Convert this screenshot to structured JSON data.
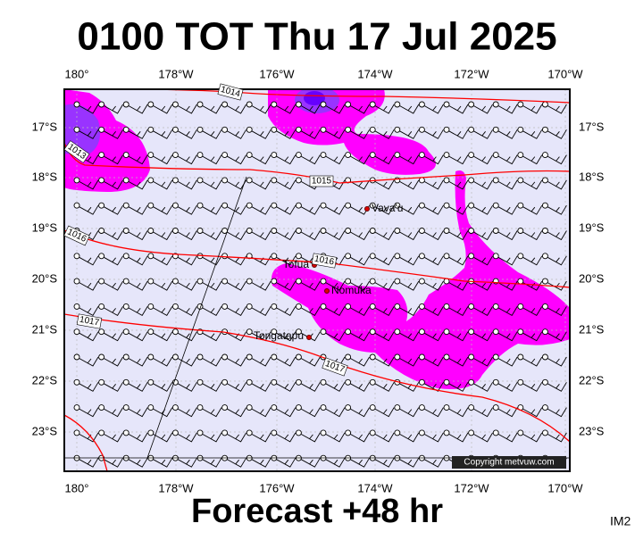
{
  "title": "0100 TOT Thu 17 Jul 2025",
  "footer": "Forecast +48 hr",
  "corner_label": "IM2",
  "map": {
    "lon_labels": [
      "180°",
      "178°W",
      "176°W",
      "174°W",
      "172°W",
      "170°W"
    ],
    "lat_labels": [
      "17°S",
      "18°S",
      "19°S",
      "20°S",
      "21°S",
      "22°S",
      "23°S"
    ],
    "places": [
      "Vava'u",
      "Tofua",
      "Nomuka",
      "Tongatapu"
    ],
    "isobar_labels": [
      "1014",
      "1013",
      "1015",
      "1016",
      "1016",
      "1017",
      "1017"
    ],
    "copyright": "Copyright metvuw.com"
  }
}
